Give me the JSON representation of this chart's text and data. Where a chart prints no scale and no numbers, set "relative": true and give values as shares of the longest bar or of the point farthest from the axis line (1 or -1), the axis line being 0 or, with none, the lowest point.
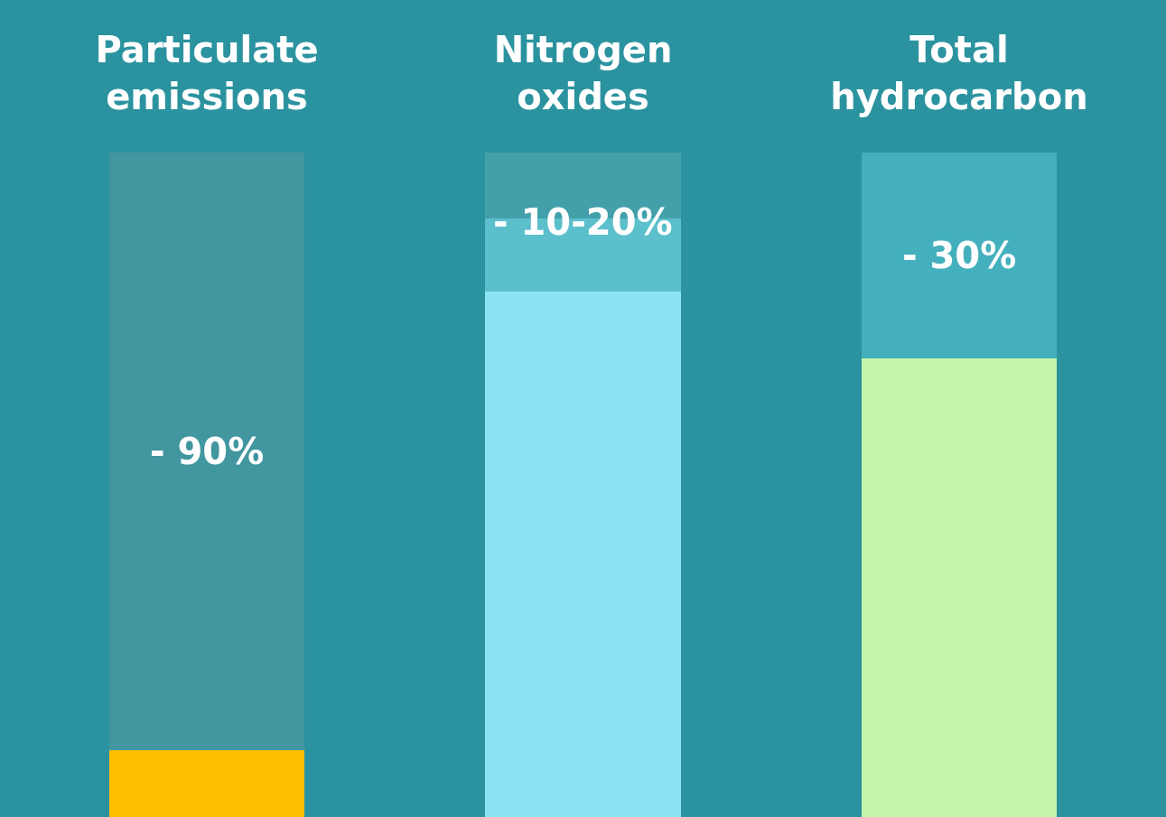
{
  "chart_data": {
    "type": "bar",
    "relative": true,
    "stacked": true,
    "grid": false,
    "categories": [
      "Particulate\nemissions",
      "Nitrogen\noxides",
      "Total\nhydrocarbon"
    ],
    "series": [
      {
        "colors": [
          "#ffbf00",
          "#8ce4f2",
          "#c5f5a8"
        ],
        "values": [
          0.1,
          0.79,
          0.69
        ]
      },
      {
        "colors": [
          "#42969f",
          "#5cbfcc",
          "#45b0bd"
        ],
        "values": [
          null,
          0.11,
          null
        ]
      },
      {
        "colors": [
          "#42969f",
          "#43a0aa",
          "#45b0bd"
        ],
        "values": [
          0.9,
          0.1,
          0.31
        ]
      }
    ],
    "annotations": [
      "- 90%",
      "- 10-20%",
      "- 30%"
    ]
  }
}
